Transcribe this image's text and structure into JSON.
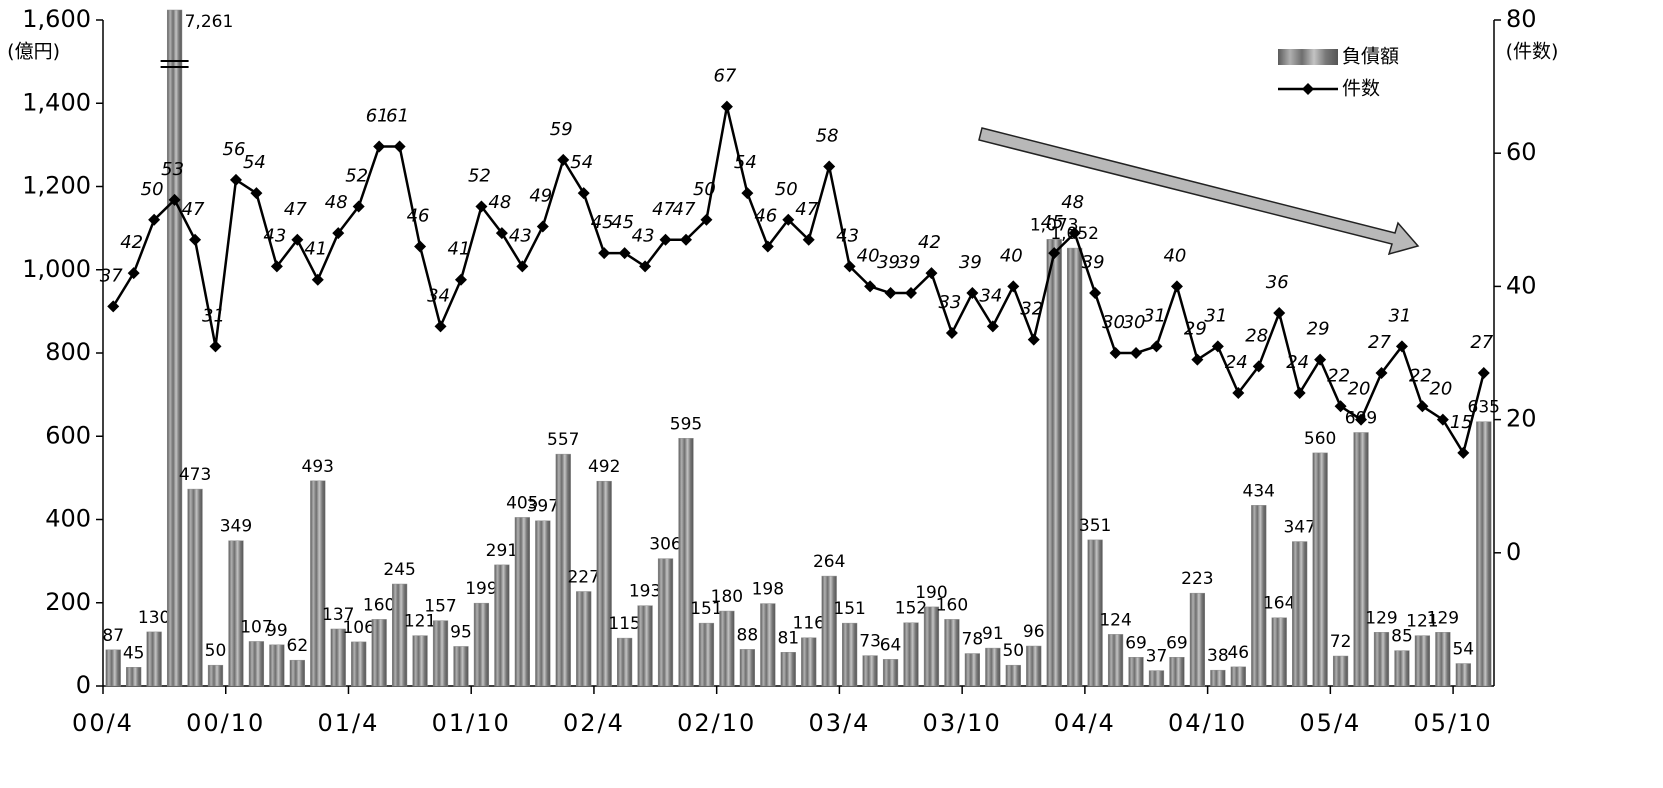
{
  "chart_data": {
    "type": "bar",
    "y_label": "(億円)",
    "y2_label": "(件数)",
    "legend": "upper right",
    "categories": [
      "00/4",
      null,
      null,
      null,
      null,
      null,
      "00/10",
      null,
      null,
      null,
      null,
      null,
      "01/4",
      null,
      null,
      null,
      null,
      null,
      "01/10",
      null,
      null,
      null,
      null,
      null,
      "02/4",
      null,
      null,
      null,
      null,
      null,
      "02/10",
      null,
      null,
      null,
      null,
      null,
      "03/4",
      null,
      null,
      null,
      null,
      null,
      "03/10",
      null,
      null,
      null,
      null,
      null,
      "04/4",
      null,
      null,
      null,
      null,
      null,
      "04/10",
      null,
      null,
      null,
      null,
      null,
      "05/4",
      null,
      null,
      null,
      null,
      null,
      "05/10",
      null
    ],
    "series": [
      {
        "name": "負債額",
        "type": "bar",
        "color": "#8c8c8c",
        "values": [
          87,
          45,
          130,
          7261,
          473,
          50,
          349,
          107,
          99,
          62,
          493,
          137,
          106,
          160,
          245,
          121,
          157,
          95,
          199,
          291,
          405,
          397,
          557,
          227,
          492,
          115,
          193,
          306,
          595,
          151,
          180,
          88,
          198,
          81,
          116,
          264,
          151,
          73,
          64,
          152,
          190,
          160,
          78,
          91,
          50,
          96,
          1073,
          1052,
          351,
          124,
          69,
          37,
          69,
          223,
          38,
          46,
          434,
          164,
          347,
          560,
          72,
          609,
          129,
          85,
          121,
          129,
          54,
          635
        ],
        "value_labels": [
          "87",
          "45",
          "130",
          "7,261",
          "473",
          "50",
          "349",
          "107",
          "99",
          "62",
          "493",
          "137",
          "106",
          "160",
          "245",
          "121",
          "157",
          "95",
          "199",
          "291",
          "405",
          "397",
          "557",
          "227",
          "492",
          "115",
          "193",
          "306",
          "595",
          "151",
          "180",
          "88",
          "198",
          "81",
          "116",
          "264",
          "151",
          "73",
          "64",
          "152",
          "190",
          "160",
          "78",
          "91",
          "50",
          "96",
          "1,073",
          "1,052",
          "351",
          "124",
          "69",
          "37",
          "69",
          "223",
          "38",
          "46",
          "434",
          "164",
          "347",
          "560",
          "72",
          "609",
          "129",
          "85",
          "121",
          "129",
          "54",
          "635"
        ]
      },
      {
        "name": "件数",
        "type": "line",
        "color": "#000000",
        "axis": "y2",
        "values": [
          37,
          42,
          50,
          53,
          47,
          31,
          56,
          54,
          43,
          47,
          41,
          48,
          52,
          61,
          61,
          46,
          34,
          41,
          52,
          48,
          43,
          49,
          59,
          54,
          45,
          45,
          43,
          47,
          47,
          50,
          67,
          54,
          46,
          50,
          47,
          58,
          43,
          40,
          39,
          39,
          42,
          33,
          39,
          34,
          40,
          32,
          45,
          48,
          39,
          30,
          30,
          31,
          40,
          29,
          31,
          24,
          28,
          36,
          24,
          29,
          22,
          20,
          27,
          31,
          22,
          20,
          15,
          27
        ]
      }
    ],
    "ylim": [
      0,
      1600
    ],
    "yticks": [
      0,
      200,
      400,
      600,
      800,
      {
        "value": 1000,
        "label": "1,000"
      },
      {
        "value": 1200,
        "label": "1,200"
      },
      {
        "value": 1400,
        "label": "1,400"
      },
      {
        "value": 1600,
        "label": "1,600"
      }
    ],
    "y2lim": [
      -20,
      80
    ],
    "y2ticks": [
      0,
      20,
      40,
      60,
      80
    ]
  }
}
